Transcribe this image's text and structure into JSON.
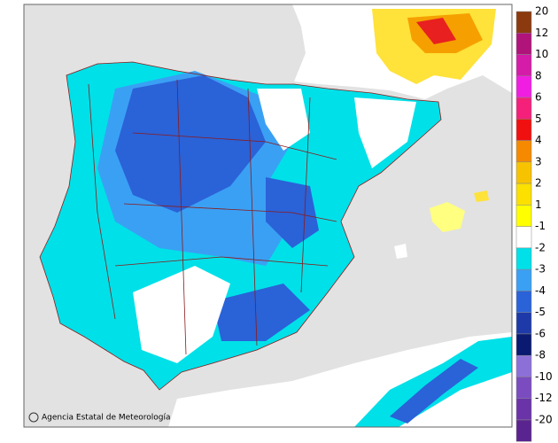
{
  "map": {
    "credit": "Agencia Estatal de Meteorología",
    "legend": {
      "labels": [
        "20",
        "12",
        "10",
        "8",
        "6",
        "5",
        "4",
        "3",
        "2",
        "1",
        "-1",
        "-2",
        "-3",
        "-4",
        "-5",
        "-6",
        "-8",
        "-10",
        "-12",
        "-20"
      ],
      "colors": [
        "#8b3a0f",
        "#b0147a",
        "#d41ca8",
        "#f01ee0",
        "#f4207a",
        "#f01010",
        "#f58a00",
        "#f7c300",
        "#fbe000",
        "#ffff00",
        "#ffffff",
        "#00e0e8",
        "#3aa0f4",
        "#2a62d8",
        "#1e3aa8",
        "#0a1a70",
        "#8c70d8",
        "#7a4cc0",
        "#6a34a8",
        "#5a2490"
      ]
    }
  }
}
